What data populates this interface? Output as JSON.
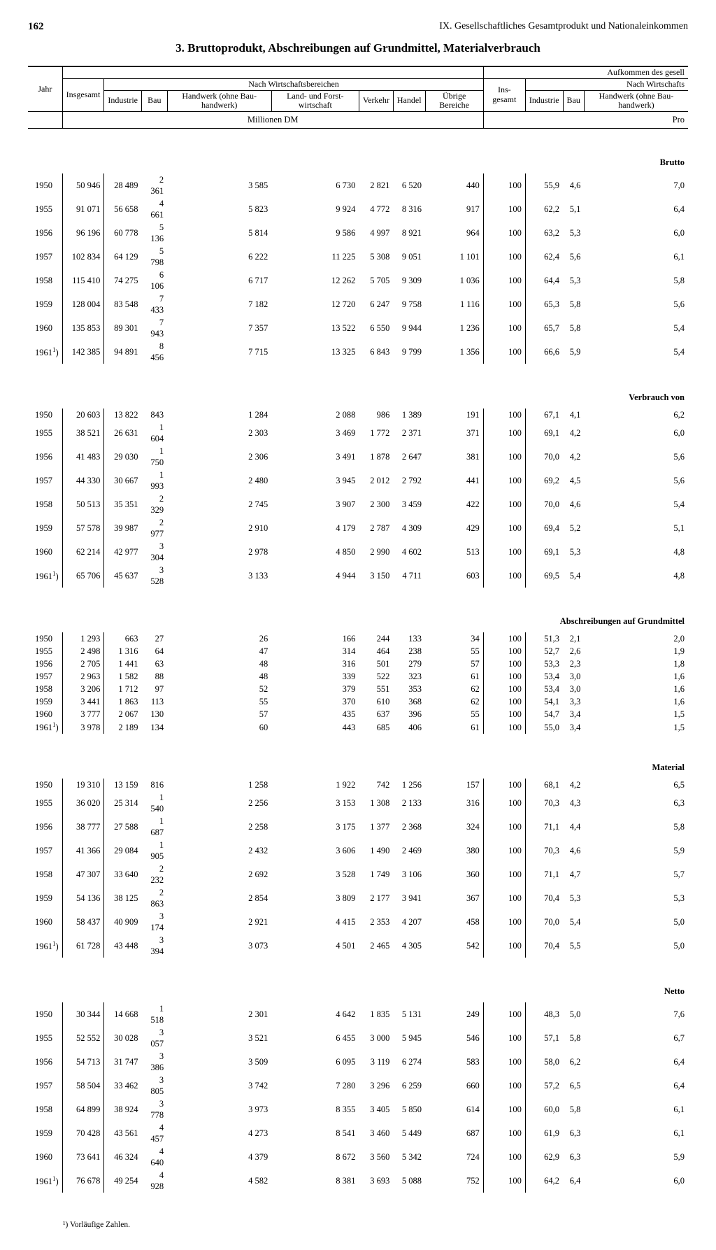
{
  "page_number": "162",
  "chapter": "IX. Gesellschaftliches Gesamtprodukt und Nationaleinkommen",
  "section_title": "3. Bruttoprodukt, Abschreibungen auf Grundmittel, Materialverbrauch",
  "headers": {
    "aufk": "Aufkommen des gesell",
    "nach_wirt": "Nach Wirtschaftsbereichen",
    "nach_wirt2": "Nach Wirtschafts",
    "jahr": "Jahr",
    "insgesamt": "Insgesamt",
    "industrie": "Industrie",
    "bau": "Bau",
    "handwerk": "Handwerk (ohne Bau-handwerk)",
    "land": "Land- und Forst-wirtschaft",
    "verkehr": "Verkehr",
    "handel": "Handel",
    "ubrige": "Übrige Bereiche",
    "ins2": "Ins-gesamt",
    "unit1": "Millionen DM",
    "unit2": "Pro"
  },
  "sections": [
    {
      "label": "Brutto",
      "rows": [
        [
          "1950",
          "50 946",
          "28 489",
          "2 361",
          "3 585",
          "6 730",
          "2 821",
          "6 520",
          "440",
          "100",
          "55,9",
          "4,6",
          "7,0"
        ],
        [
          "1955",
          "91 071",
          "56 658",
          "4 661",
          "5 823",
          "9 924",
          "4 772",
          "8 316",
          "917",
          "100",
          "62,2",
          "5,1",
          "6,4"
        ],
        [
          "1956",
          "96 196",
          "60 778",
          "5 136",
          "5 814",
          "9 586",
          "4 997",
          "8 921",
          "964",
          "100",
          "63,2",
          "5,3",
          "6,0"
        ],
        [
          "1957",
          "102 834",
          "64 129",
          "5 798",
          "6 222",
          "11 225",
          "5 308",
          "9 051",
          "1 101",
          "100",
          "62,4",
          "5,6",
          "6,1"
        ],
        [
          "1958",
          "115 410",
          "74 275",
          "6 106",
          "6 717",
          "12 262",
          "5 705",
          "9 309",
          "1 036",
          "100",
          "64,4",
          "5,3",
          "5,8"
        ],
        [
          "1959",
          "128 004",
          "83 548",
          "7 433",
          "7 182",
          "12 720",
          "6 247",
          "9 758",
          "1 116",
          "100",
          "65,3",
          "5,8",
          "5,6"
        ],
        [
          "1960",
          "135 853",
          "89 301",
          "7 943",
          "7 357",
          "13 522",
          "6 550",
          "9 944",
          "1 236",
          "100",
          "65,7",
          "5,8",
          "5,4"
        ],
        [
          "1961¹)",
          "142 385",
          "94 891",
          "8 456",
          "7 715",
          "13 325",
          "6 843",
          "9 799",
          "1 356",
          "100",
          "66,6",
          "5,9",
          "5,4"
        ]
      ]
    },
    {
      "label": "Verbrauch von",
      "rows": [
        [
          "1950",
          "20 603",
          "13 822",
          "843",
          "1 284",
          "2 088",
          "986",
          "1 389",
          "191",
          "100",
          "67,1",
          "4,1",
          "6,2"
        ],
        [
          "1955",
          "38 521",
          "26 631",
          "1 604",
          "2 303",
          "3 469",
          "1 772",
          "2 371",
          "371",
          "100",
          "69,1",
          "4,2",
          "6,0"
        ],
        [
          "1956",
          "41 483",
          "29 030",
          "1 750",
          "2 306",
          "3 491",
          "1 878",
          "2 647",
          "381",
          "100",
          "70,0",
          "4,2",
          "5,6"
        ],
        [
          "1957",
          "44 330",
          "30 667",
          "1 993",
          "2 480",
          "3 945",
          "2 012",
          "2 792",
          "441",
          "100",
          "69,2",
          "4,5",
          "5,6"
        ],
        [
          "1958",
          "50 513",
          "35 351",
          "2 329",
          "2 745",
          "3 907",
          "2 300",
          "3 459",
          "422",
          "100",
          "70,0",
          "4,6",
          "5,4"
        ],
        [
          "1959",
          "57 578",
          "39 987",
          "2 977",
          "2 910",
          "4 179",
          "2 787",
          "4 309",
          "429",
          "100",
          "69,4",
          "5,2",
          "5,1"
        ],
        [
          "1960",
          "62 214",
          "42 977",
          "3 304",
          "2 978",
          "4 850",
          "2 990",
          "4 602",
          "513",
          "100",
          "69,1",
          "5,3",
          "4,8"
        ],
        [
          "1961¹)",
          "65 706",
          "45 637",
          "3 528",
          "3 133",
          "4 944",
          "3 150",
          "4 711",
          "603",
          "100",
          "69,5",
          "5,4",
          "4,8"
        ]
      ]
    },
    {
      "label": "Abschreibungen auf Grundmittel",
      "rows": [
        [
          "1950",
          "1 293",
          "663",
          "27",
          "26",
          "166",
          "244",
          "133",
          "34",
          "100",
          "51,3",
          "2,1",
          "2,0"
        ],
        [
          "1955",
          "2 498",
          "1 316",
          "64",
          "47",
          "314",
          "464",
          "238",
          "55",
          "100",
          "52,7",
          "2,6",
          "1,9"
        ],
        [
          "1956",
          "2 705",
          "1 441",
          "63",
          "48",
          "316",
          "501",
          "279",
          "57",
          "100",
          "53,3",
          "2,3",
          "1,8"
        ],
        [
          "1957",
          "2 963",
          "1 582",
          "88",
          "48",
          "339",
          "522",
          "323",
          "61",
          "100",
          "53,4",
          "3,0",
          "1,6"
        ],
        [
          "1958",
          "3 206",
          "1 712",
          "97",
          "52",
          "379",
          "551",
          "353",
          "62",
          "100",
          "53,4",
          "3,0",
          "1,6"
        ],
        [
          "1959",
          "3 441",
          "1 863",
          "113",
          "55",
          "370",
          "610",
          "368",
          "62",
          "100",
          "54,1",
          "3,3",
          "1,6"
        ],
        [
          "1960",
          "3 777",
          "2 067",
          "130",
          "57",
          "435",
          "637",
          "396",
          "55",
          "100",
          "54,7",
          "3,4",
          "1,5"
        ],
        [
          "1961¹)",
          "3 978",
          "2 189",
          "134",
          "60",
          "443",
          "685",
          "406",
          "61",
          "100",
          "55,0",
          "3,4",
          "1,5"
        ]
      ]
    },
    {
      "label": "Material",
      "rows": [
        [
          "1950",
          "19 310",
          "13 159",
          "816",
          "1 258",
          "1 922",
          "742",
          "1 256",
          "157",
          "100",
          "68,1",
          "4,2",
          "6,5"
        ],
        [
          "1955",
          "36 020",
          "25 314",
          "1 540",
          "2 256",
          "3 153",
          "1 308",
          "2 133",
          "316",
          "100",
          "70,3",
          "4,3",
          "6,3"
        ],
        [
          "1956",
          "38 777",
          "27 588",
          "1 687",
          "2 258",
          "3 175",
          "1 377",
          "2 368",
          "324",
          "100",
          "71,1",
          "4,4",
          "5,8"
        ],
        [
          "1957",
          "41 366",
          "29 084",
          "1 905",
          "2 432",
          "3 606",
          "1 490",
          "2 469",
          "380",
          "100",
          "70,3",
          "4,6",
          "5,9"
        ],
        [
          "1958",
          "47 307",
          "33 640",
          "2 232",
          "2 692",
          "3 528",
          "1 749",
          "3 106",
          "360",
          "100",
          "71,1",
          "4,7",
          "5,7"
        ],
        [
          "1959",
          "54 136",
          "38 125",
          "2 863",
          "2 854",
          "3 809",
          "2 177",
          "3 941",
          "367",
          "100",
          "70,4",
          "5,3",
          "5,3"
        ],
        [
          "1960",
          "58 437",
          "40 909",
          "3 174",
          "2 921",
          "4 415",
          "2 353",
          "4 207",
          "458",
          "100",
          "70,0",
          "5,4",
          "5,0"
        ],
        [
          "1961¹)",
          "61 728",
          "43 448",
          "3 394",
          "3 073",
          "4 501",
          "2 465",
          "4 305",
          "542",
          "100",
          "70,4",
          "5,5",
          "5,0"
        ]
      ]
    },
    {
      "label": "Netto",
      "rows": [
        [
          "1950",
          "30 344",
          "14 668",
          "1 518",
          "2 301",
          "4 642",
          "1 835",
          "5 131",
          "249",
          "100",
          "48,3",
          "5,0",
          "7,6"
        ],
        [
          "1955",
          "52 552",
          "30 028",
          "3 057",
          "3 521",
          "6 455",
          "3 000",
          "5 945",
          "546",
          "100",
          "57,1",
          "5,8",
          "6,7"
        ],
        [
          "1956",
          "54 713",
          "31 747",
          "3 386",
          "3 509",
          "6 095",
          "3 119",
          "6 274",
          "583",
          "100",
          "58,0",
          "6,2",
          "6,4"
        ],
        [
          "1957",
          "58 504",
          "33 462",
          "3 805",
          "3 742",
          "7 280",
          "3 296",
          "6 259",
          "660",
          "100",
          "57,2",
          "6,5",
          "6,4"
        ],
        [
          "1958",
          "64 899",
          "38 924",
          "3 778",
          "3 973",
          "8 355",
          "3 405",
          "5 850",
          "614",
          "100",
          "60,0",
          "5,8",
          "6,1"
        ],
        [
          "1959",
          "70 428",
          "43 561",
          "4 457",
          "4 273",
          "8 541",
          "3 460",
          "5 449",
          "687",
          "100",
          "61,9",
          "6,3",
          "6,1"
        ],
        [
          "1960",
          "73 641",
          "46 324",
          "4 640",
          "4 379",
          "8 672",
          "3 560",
          "5 342",
          "724",
          "100",
          "62,9",
          "6,3",
          "5,9"
        ],
        [
          "1961¹)",
          "76 678",
          "49 254",
          "4 928",
          "4 582",
          "8 381",
          "3 693",
          "5 088",
          "752",
          "100",
          "64,2",
          "6,4",
          "6,0"
        ]
      ]
    }
  ],
  "footnote": "¹) Vorläufige Zahlen."
}
